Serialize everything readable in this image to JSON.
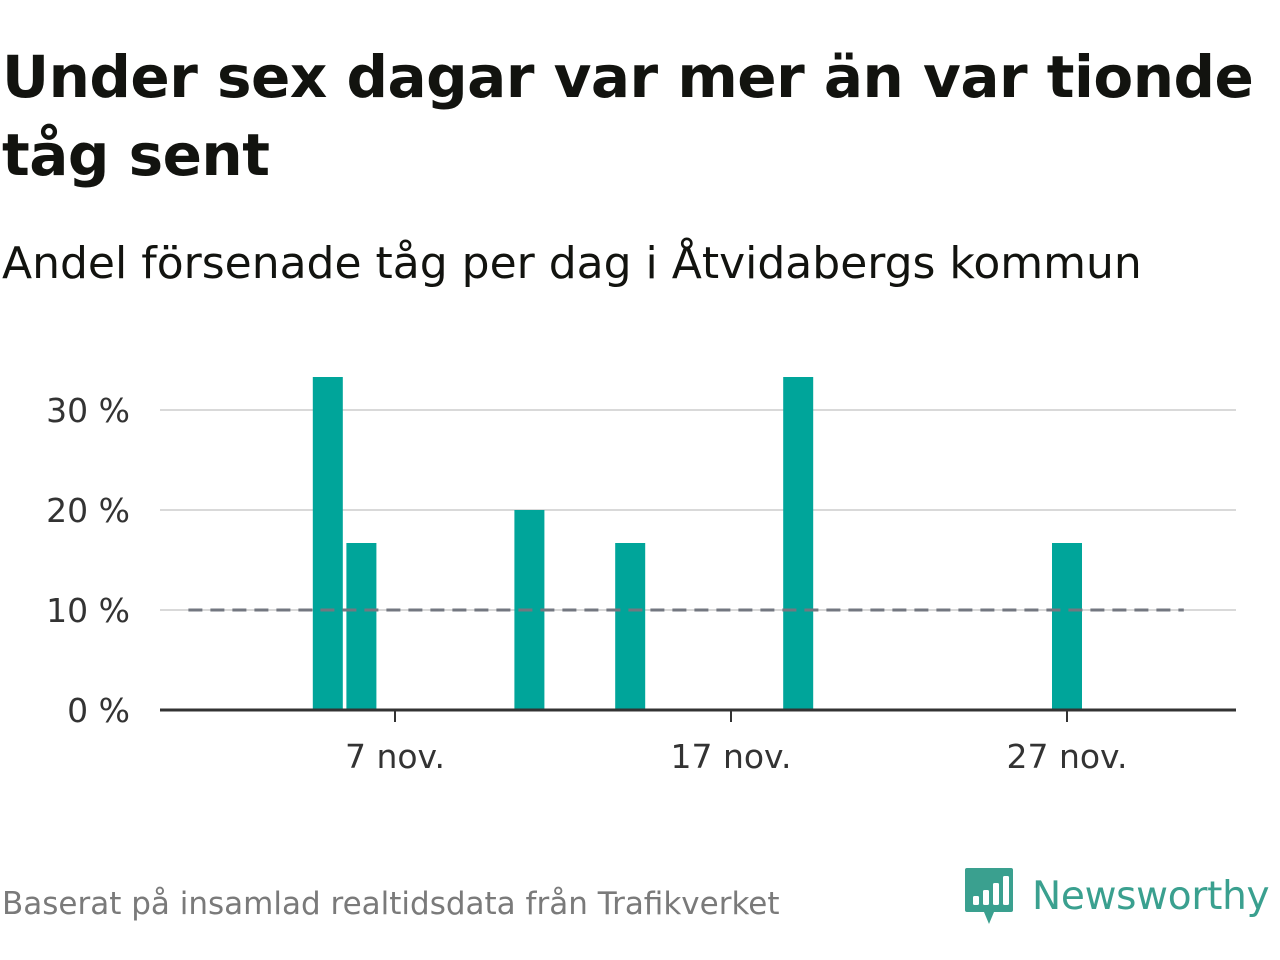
{
  "header": {
    "title": "Under sex dagar var mer än var tionde tåg sent",
    "subtitle": "Andel försenade tåg per dag i Åtvidabergs kommun"
  },
  "footer": {
    "source": "Baserat på insamlad realtidsdata från Trafikverket",
    "brand": "Newsworthy",
    "brand_icon": "bar-chart-speech-bubble-icon"
  },
  "colors": {
    "bar": "#00a59a",
    "threshold": "#737780",
    "grid": "#d9d9d9",
    "axis": "#333333",
    "brand": "#3aa08f"
  },
  "chart_data": {
    "type": "bar",
    "title": "Under sex dagar var mer än var tionde tåg sent",
    "subtitle": "Andel försenade tåg per dag i Åtvidabergs kommun",
    "xlabel": "",
    "ylabel": "",
    "x_domain": [
      "2023-11-01",
      "2023-11-30"
    ],
    "ylim": [
      0,
      35
    ],
    "y_ticks": [
      0,
      10,
      20,
      30
    ],
    "y_tick_labels": [
      "0 %",
      "10 %",
      "20 %",
      "30 %"
    ],
    "x_ticks": [
      "2023-11-07",
      "2023-11-17",
      "2023-11-27"
    ],
    "x_tick_labels": [
      "7 nov.",
      "17 nov.",
      "27 nov."
    ],
    "series": [
      {
        "dates": [
          "2023-11-05",
          "2023-11-06",
          "2023-11-11",
          "2023-11-14",
          "2023-11-19",
          "2023-11-27"
        ],
        "values": [
          33.3,
          16.7,
          20.0,
          16.7,
          33.3,
          16.7
        ]
      }
    ],
    "reference_line": {
      "value": 10,
      "from": "2023-11-01",
      "to": "2023-11-30",
      "style": "dashed"
    },
    "grid": true
  }
}
